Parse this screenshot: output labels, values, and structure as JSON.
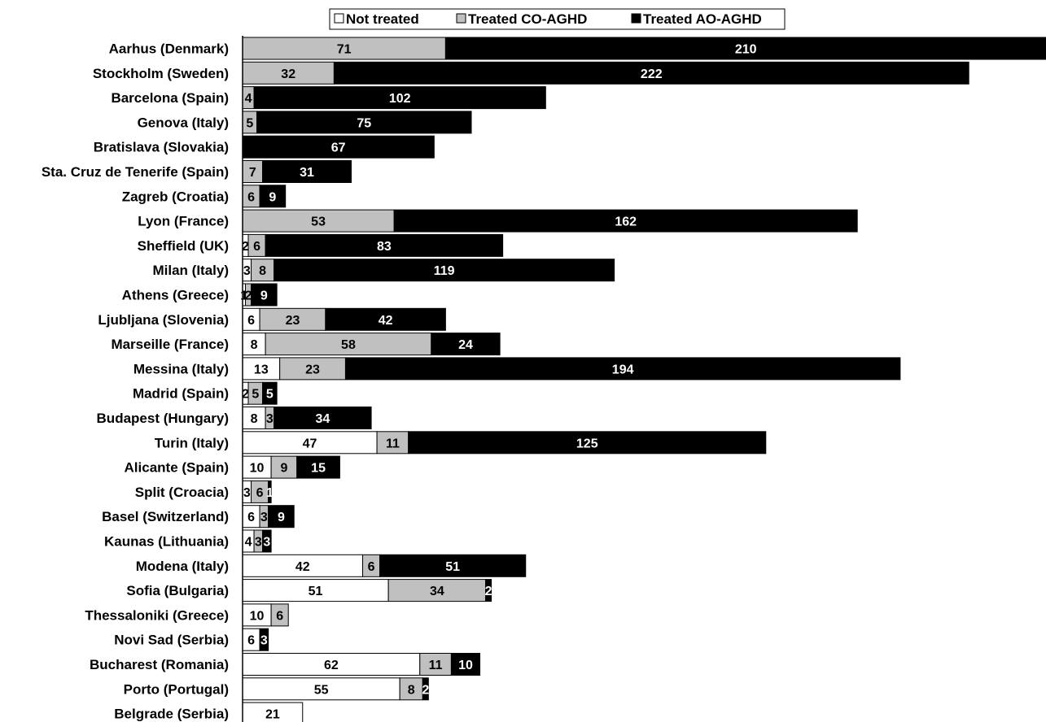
{
  "chart_data": {
    "type": "bar",
    "orientation": "horizontal",
    "stacked": true,
    "grid": false,
    "legend_position": "top",
    "colors": {
      "Not treated": "#ffffff",
      "Treated CO-AGHD": "#c0c0c0",
      "Treated AO-AGHD": "#000000"
    },
    "categories": [
      "Aarhus (Denmark)",
      "Stockholm (Sweden)",
      "Barcelona (Spain)",
      "Genova (Italy)",
      "Bratislava (Slovakia)",
      "Sta. Cruz de Tenerife (Spain)",
      "Zagreb (Croatia)",
      "Lyon (France)",
      "Sheffield (UK)",
      "Milan (Italy)",
      "Athens (Greece)",
      "Ljubljana (Slovenia)",
      "Marseille (France)",
      "Messina (Italy)",
      "Madrid (Spain)",
      "Budapest (Hungary)",
      "Turin (Italy)",
      "Alicante (Spain)",
      "Split (Croacia)",
      "Basel (Switzerland)",
      "Kaunas (Lithuania)",
      "Modena (Italy)",
      "Sofia (Bulgaria)",
      "Thessaloniki (Greece)",
      "Novi Sad (Serbia)",
      "Bucharest (Romania)",
      "Porto (Portugal)",
      "Belgrade (Serbia)"
    ],
    "series": [
      {
        "name": "Not treated",
        "values": [
          0,
          0,
          0,
          0,
          0,
          0,
          0,
          0,
          2,
          3,
          1,
          6,
          8,
          13,
          2,
          8,
          47,
          10,
          3,
          6,
          4,
          42,
          51,
          10,
          6,
          62,
          55,
          21
        ]
      },
      {
        "name": "Treated CO-AGHD",
        "values": [
          71,
          32,
          4,
          5,
          0,
          7,
          6,
          53,
          6,
          8,
          2,
          23,
          58,
          23,
          5,
          3,
          11,
          9,
          6,
          3,
          3,
          6,
          34,
          6,
          0,
          11,
          8,
          0
        ]
      },
      {
        "name": "Treated AO-AGHD",
        "values": [
          210,
          222,
          102,
          75,
          67,
          31,
          9,
          162,
          83,
          119,
          9,
          42,
          24,
          194,
          5,
          34,
          125,
          15,
          1,
          9,
          3,
          51,
          2,
          0,
          3,
          10,
          2,
          0
        ]
      }
    ],
    "legend": [
      "Not treated",
      "Treated CO-AGHD",
      "Treated AO-AGHD"
    ],
    "xlim": [
      0,
      281
    ]
  }
}
